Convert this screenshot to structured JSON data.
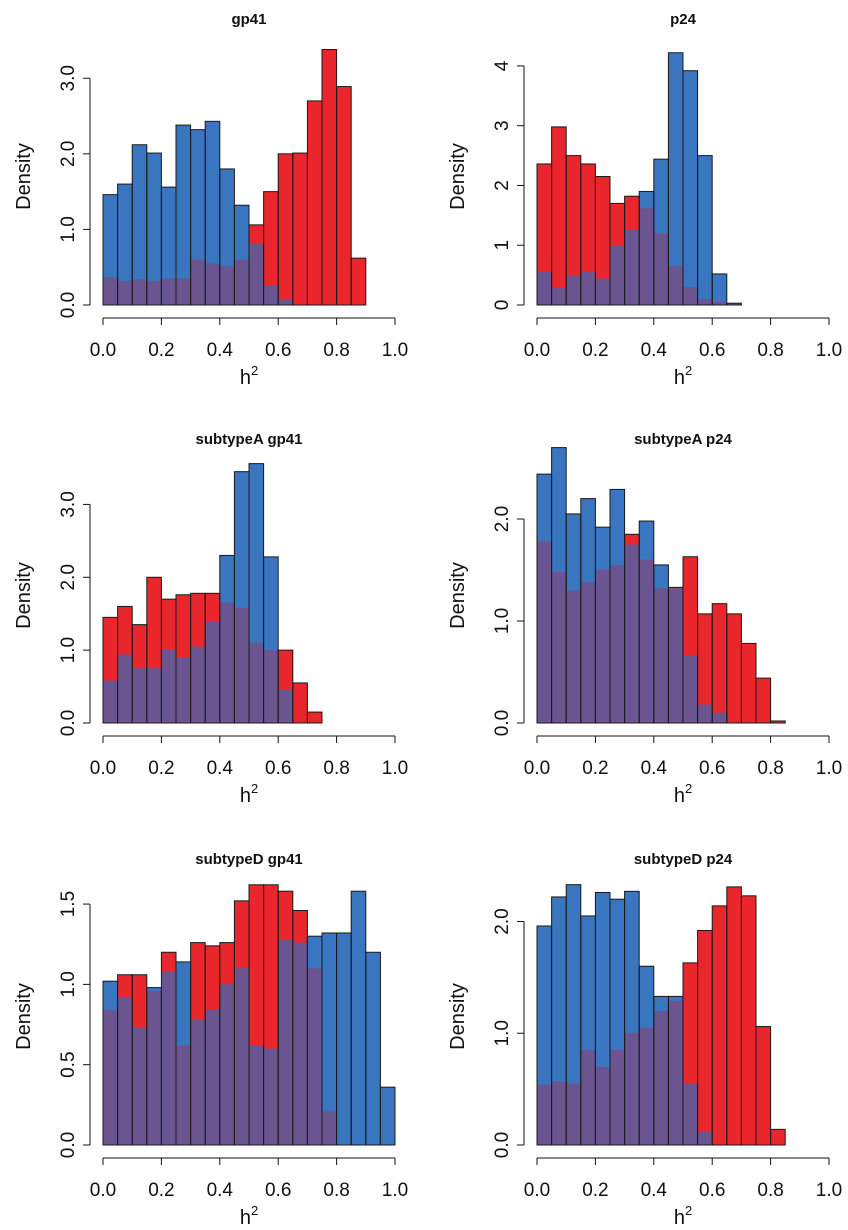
{
  "colors": {
    "red": "#e8262b",
    "blue": "#3a76bf",
    "overlap": "#6a5591",
    "stroke": "#1a1a1a"
  },
  "chart_data": [
    {
      "type": "bar",
      "title": "gp41",
      "xlabel": "h",
      "xlabel_sup": "2",
      "ylabel": "Density",
      "xlim": [
        0,
        1
      ],
      "ylim": [
        0,
        3.4
      ],
      "xticks": [
        "0.0",
        "0.2",
        "0.4",
        "0.6",
        "0.8",
        "1.0"
      ],
      "yticks": [
        "0.0",
        "1.0",
        "2.0",
        "3.0"
      ],
      "bin_width": 0.05,
      "red": [
        0.37,
        0.32,
        0.34,
        0.32,
        0.35,
        0.35,
        0.6,
        0.55,
        0.51,
        0.6,
        1.06,
        1.5,
        2.0,
        2.01,
        2.7,
        3.38,
        2.89,
        0.62,
        0,
        0
      ],
      "blue": [
        1.46,
        1.6,
        2.12,
        2.01,
        1.56,
        2.38,
        2.32,
        2.43,
        1.8,
        1.32,
        0.81,
        0.25,
        0.08,
        0,
        0,
        0,
        0,
        0,
        0,
        0
      ]
    },
    {
      "type": "bar",
      "title": "p24",
      "xlabel": "h",
      "xlabel_sup": "2",
      "ylabel": "Density",
      "xlim": [
        0,
        1
      ],
      "ylim": [
        0,
        4.3
      ],
      "xticks": [
        "0.0",
        "0.2",
        "0.4",
        "0.6",
        "0.8",
        "1.0"
      ],
      "yticks": [
        "0",
        "1",
        "2",
        "3",
        "4"
      ],
      "bin_width": 0.05,
      "red": [
        2.36,
        2.98,
        2.5,
        2.36,
        2.15,
        1.7,
        1.82,
        1.62,
        1.2,
        0.65,
        0.3,
        0.1,
        0.05,
        0.02,
        0,
        0,
        0,
        0,
        0,
        0
      ],
      "blue": [
        0.56,
        0.3,
        0.48,
        0.55,
        0.44,
        1.0,
        1.25,
        1.9,
        2.44,
        4.22,
        3.92,
        2.5,
        0.52,
        0.03,
        0,
        0,
        0,
        0,
        0,
        0
      ]
    },
    {
      "type": "bar",
      "title": "subtypeA gp41",
      "xlabel": "h",
      "xlabel_sup": "2",
      "ylabel": "Density",
      "xlim": [
        0,
        1
      ],
      "ylim": [
        0,
        3.5
      ],
      "xticks": [
        "0.0",
        "0.2",
        "0.4",
        "0.6",
        "0.8",
        "1.0"
      ],
      "yticks": [
        "0.0",
        "1.0",
        "2.0",
        "3.0"
      ],
      "bin_width": 0.05,
      "red": [
        1.45,
        1.6,
        1.35,
        2.0,
        1.7,
        1.76,
        1.78,
        1.78,
        1.65,
        1.58,
        1.1,
        1.0,
        1.0,
        0.55,
        0.15,
        0,
        0,
        0,
        0,
        0
      ],
      "blue": [
        0.58,
        0.94,
        0.75,
        0.75,
        1.0,
        0.9,
        1.05,
        1.4,
        2.3,
        3.45,
        3.56,
        2.28,
        0.45,
        0,
        0,
        0,
        0,
        0,
        0,
        0
      ]
    },
    {
      "type": "bar",
      "title": "subtypeA p24",
      "xlabel": "h",
      "xlabel_sup": "2",
      "ylabel": "Density",
      "xlim": [
        0,
        1
      ],
      "ylim": [
        0,
        2.5
      ],
      "xticks": [
        "0.0",
        "0.2",
        "0.4",
        "0.6",
        "0.8",
        "1.0"
      ],
      "yticks": [
        "0.0",
        "1.0",
        "2.0"
      ],
      "bin_width": 0.05,
      "red": [
        1.78,
        1.48,
        1.3,
        1.38,
        1.5,
        1.55,
        1.85,
        1.6,
        1.32,
        1.33,
        1.63,
        1.07,
        1.17,
        1.07,
        0.78,
        0.44,
        0.02,
        0,
        0,
        0
      ],
      "blue": [
        2.44,
        2.7,
        2.05,
        2.2,
        1.92,
        2.29,
        1.75,
        1.98,
        1.55,
        1.32,
        0.66,
        0.18,
        0.1,
        0,
        0,
        0,
        0,
        0,
        0,
        0
      ]
    },
    {
      "type": "bar",
      "title": "subtypeD gp41",
      "xlabel": "h",
      "xlabel_sup": "2",
      "ylabel": "Density",
      "xlim": [
        0,
        1
      ],
      "ylim": [
        0,
        1.6
      ],
      "xticks": [
        "0.0",
        "0.2",
        "0.4",
        "0.6",
        "0.8",
        "1.0"
      ],
      "yticks": [
        "0.0",
        "0.5",
        "1.0",
        "1.5"
      ],
      "bin_width": 0.05,
      "red": [
        0.84,
        1.06,
        1.06,
        0.96,
        1.2,
        0.62,
        1.26,
        1.24,
        1.26,
        1.52,
        1.62,
        1.62,
        1.58,
        1.46,
        1.1,
        0.21,
        0,
        0,
        0,
        0
      ],
      "blue": [
        1.02,
        0.92,
        0.73,
        0.98,
        1.08,
        1.14,
        0.78,
        0.84,
        1.0,
        1.1,
        0.62,
        0.6,
        1.28,
        1.26,
        1.3,
        1.32,
        1.32,
        1.58,
        1.2,
        0.36
      ]
    },
    {
      "type": "bar",
      "title": "subtypeD p24",
      "xlabel": "h",
      "xlabel_sup": "2",
      "ylabel": "Density",
      "xlim": [
        0,
        1
      ],
      "ylim": [
        0,
        2.3
      ],
      "xticks": [
        "0.0",
        "0.2",
        "0.4",
        "0.6",
        "0.8",
        "1.0"
      ],
      "yticks": [
        "0.0",
        "1.0",
        "2.0"
      ],
      "bin_width": 0.05,
      "red": [
        0.54,
        0.57,
        0.55,
        0.85,
        0.7,
        0.85,
        1.0,
        1.05,
        1.2,
        1.29,
        1.63,
        1.92,
        2.14,
        2.31,
        2.23,
        1.06,
        0.14,
        0,
        0,
        0
      ],
      "blue": [
        1.96,
        2.22,
        2.33,
        2.05,
        2.26,
        2.2,
        2.27,
        1.6,
        1.33,
        1.33,
        0.55,
        0.12,
        0,
        0,
        0,
        0,
        0,
        0,
        0,
        0
      ]
    }
  ]
}
